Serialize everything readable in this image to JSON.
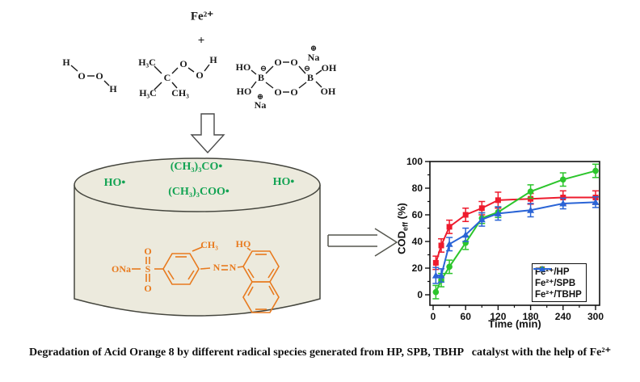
{
  "figure": {
    "caption": "Degradation of Acid Orange 8 by different radical species generated from HP, SPB, TBHP   catalyst with the help of Fe²⁺"
  },
  "scheme": {
    "catalyst_label": "Fe²⁺",
    "plus_sign": "+",
    "atoms": {
      "H": "H",
      "O": "O",
      "C": "C",
      "B": "B",
      "Na": "Na",
      "HO": "HO",
      "OH": "OH",
      "H3C": "H₃C",
      "CH3": "CH₃",
      "ONa": "ONa",
      "S": "S",
      "N": "N",
      "neg_charge": "⊖",
      "pos_charge": "⊕"
    },
    "reactor_radicals": {
      "ho_left": "HO•",
      "tert_butoxyl": "(CH₃)₃CO•",
      "tert_butylperoxyl": "(CH₃)₃COO•",
      "ho_right": "HO•"
    }
  },
  "chart": {
    "ylabel_main": "COD",
    "ylabel_sub": "eff",
    "ylabel_unit": " (%)"
  },
  "chart_data": {
    "type": "line",
    "title": "",
    "xlabel": "Time (min)",
    "ylabel": "COD_eff (%)",
    "x_ticks": [
      0,
      60,
      120,
      180,
      240,
      300
    ],
    "y_ticks": [
      0,
      20,
      40,
      60,
      80,
      100
    ],
    "xlim": [
      0,
      300
    ],
    "ylim": [
      0,
      100
    ],
    "grid": false,
    "legend_position": "lower right",
    "x": [
      5,
      15,
      30,
      60,
      90,
      120,
      180,
      240,
      300
    ],
    "series": [
      {
        "name": "Fe²⁺/HP",
        "color": "#EE1B2D",
        "marker": "square",
        "values": [
          24,
          37,
          51,
          60,
          65,
          71,
          72,
          73,
          73
        ],
        "errors": [
          5,
          5,
          5,
          5,
          5,
          6,
          4,
          5,
          5
        ]
      },
      {
        "name": "Fe²⁺/SPB",
        "color": "#2CC52C",
        "marker": "circle",
        "values": [
          2,
          11,
          21,
          39,
          57.5,
          62,
          77.5,
          86.5,
          93
        ],
        "errors": [
          5,
          5,
          5,
          5,
          4,
          4,
          5,
          5,
          5
        ]
      },
      {
        "name": "Fe²⁺/TBHP",
        "color": "#2A64D6",
        "marker": "triangle",
        "values": [
          14.5,
          14.5,
          38,
          45,
          56.5,
          61,
          63.5,
          68.5,
          69.5
        ],
        "errors": [
          6,
          5,
          5,
          5,
          5,
          5,
          5,
          4,
          4
        ]
      }
    ]
  },
  "colors": {
    "radical_green": "#13A353",
    "dye_orange": "#E87A1E",
    "cylinder_fill": "#ECEADD",
    "series_red": "#EE1B2D",
    "series_green": "#2CC52C",
    "series_blue": "#2A64D6"
  }
}
